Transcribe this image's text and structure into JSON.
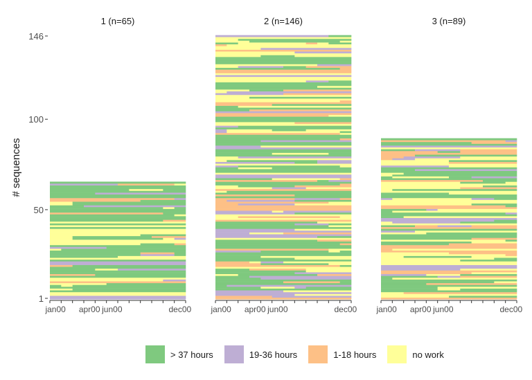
{
  "chart_data": {
    "type": "sequence-index-plot",
    "ylabel": "# sequences",
    "xlabel": "",
    "y_ticks": [
      "1",
      "50",
      "100",
      "146"
    ],
    "x_ticks": [
      "jan00",
      "apr00",
      "jun00",
      "dec00"
    ],
    "x_tick_months": [
      1,
      4,
      6,
      12
    ],
    "months": 12,
    "y_max": 146,
    "grid": false,
    "legend_position": "bottom",
    "states": [
      {
        "code": "A",
        "label": "> 37 hours",
        "color": "#7FC97F"
      },
      {
        "code": "B",
        "label": "19-36 hours",
        "color": "#BEAED4"
      },
      {
        "code": "C",
        "label": "1-18 hours",
        "color": "#FDC086"
      },
      {
        "code": "D",
        "label": "no work",
        "color": "#FFFF99"
      }
    ],
    "clusters": [
      {
        "title": "1 (n=65)",
        "n": 65
      },
      {
        "title": "2 (n=146)",
        "n": 146
      },
      {
        "title": "3 (n=89)",
        "n": 89
      }
    ]
  }
}
